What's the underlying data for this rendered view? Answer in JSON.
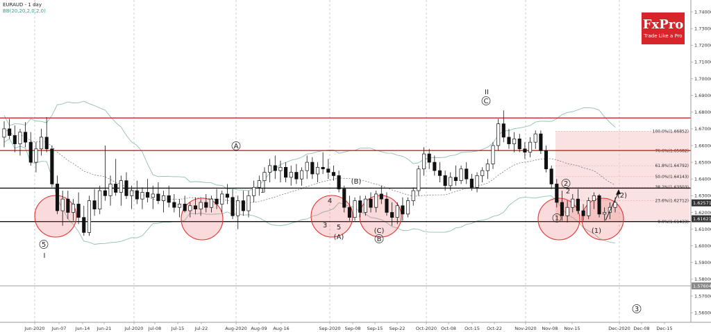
{
  "header": {
    "title": "EURAUD - 1 day",
    "indicator": "BB(20,20,2,0,2,0)"
  },
  "logo": {
    "brand": "FxPro",
    "tagline": "Trade Like a Pro",
    "color": "#d7262b"
  },
  "chart_data": {
    "type": "candlestick",
    "symbol": "EURAUD",
    "timeframe": "1 day",
    "ylim": [
      1.5555,
      1.745
    ],
    "y_ticks": [
      1.74,
      1.73,
      1.72,
      1.71,
      1.7,
      1.69,
      1.68,
      1.67,
      1.66,
      1.65,
      1.64,
      1.63,
      1.62,
      1.61,
      1.6,
      1.59,
      1.58,
      1.57,
      1.56
    ],
    "y_tick_labels": [
      "1.74000",
      "1.73000",
      "1.72000",
      "1.71000",
      "1.70000",
      "1.69000",
      "1.68000",
      "1.67000",
      "1.66000",
      "1.65000",
      "1.64000",
      "1.63000",
      "1.62000",
      "1.61000",
      "1.60000",
      "1.59000",
      "1.58000",
      "1.57000",
      "1.56000"
    ],
    "x_labels": [
      "Jun-2020",
      "Jun-07",
      "Jun-14",
      "Jun-21",
      "Jul-2020",
      "Jul-08",
      "Jul-15",
      "Jul-22",
      "Aug-2020",
      "Aug-09",
      "Aug-16",
      "Sep-2020",
      "Sep-08",
      "Sep-15",
      "Sep-22",
      "Oct-2020",
      "Oct-08",
      "Oct-15",
      "Oct-22",
      "Nov-2020",
      "Nov-08",
      "Nov-15",
      "Dec-2020",
      "Dec-08",
      "Dec-15"
    ],
    "price_badges": [
      {
        "label": "1.62571",
        "value": 1.62571,
        "color": "#333333"
      },
      {
        "label": "1.61621",
        "value": 1.61621,
        "color": "#333333"
      },
      {
        "label": "1.57604",
        "value": 1.57604,
        "color": "#888888"
      }
    ],
    "horizontal_lines": [
      {
        "value": 1.6765,
        "color": "#d42020"
      },
      {
        "value": 1.657,
        "color": "#d42020"
      },
      {
        "value": 1.6345,
        "color": "#111111"
      },
      {
        "value": 1.6145,
        "color": "#111111"
      },
      {
        "value": 1.57604,
        "color": "#888888"
      }
    ],
    "fibonacci": {
      "color": "#f5c6c6",
      "levels": [
        {
          "label": "100.0%(1.66852)",
          "value": 1.66852
        },
        {
          "label": "76.6%(1.65682)",
          "value": 1.65682
        },
        {
          "label": "61.8%(1.64792)",
          "value": 1.64792
        },
        {
          "label": "50.0%(1.64143)",
          "value": 1.64143
        },
        {
          "label": "38.2%(1.63503)",
          "value": 1.63503
        },
        {
          "label": "23.6%(1.62712)",
          "value": 1.62712
        },
        {
          "label": "0.0%(1.61433)",
          "value": 1.61433
        }
      ]
    },
    "wave_labels": [
      "5",
      "I",
      "3",
      "4",
      "5",
      "(A)",
      "(B)",
      "(C)",
      "B",
      "2",
      "A",
      "1",
      "II",
      "C",
      "1",
      "2",
      "(1)",
      "(2)",
      "3"
    ],
    "candles": [
      [
        1.665,
        1.6745,
        1.659,
        1.67
      ],
      [
        1.67,
        1.676,
        1.664,
        1.666
      ],
      [
        1.666,
        1.672,
        1.656,
        1.661
      ],
      [
        1.661,
        1.67,
        1.654,
        1.668
      ],
      [
        1.668,
        1.674,
        1.659,
        1.662
      ],
      [
        1.662,
        1.668,
        1.648,
        1.65
      ],
      [
        1.65,
        1.662,
        1.644,
        1.658
      ],
      [
        1.658,
        1.67,
        1.654,
        1.665
      ],
      [
        1.665,
        1.677,
        1.656,
        1.658
      ],
      [
        1.658,
        1.66,
        1.635,
        1.637
      ],
      [
        1.637,
        1.642,
        1.619,
        1.621
      ],
      [
        1.621,
        1.633,
        1.612,
        1.628
      ],
      [
        1.628,
        1.633,
        1.616,
        1.62
      ],
      [
        1.62,
        1.628,
        1.615,
        1.625
      ],
      [
        1.625,
        1.632,
        1.613,
        1.617
      ],
      [
        1.617,
        1.624,
        1.606,
        1.608
      ],
      [
        1.608,
        1.63,
        1.606,
        1.627
      ],
      [
        1.627,
        1.634,
        1.618,
        1.622
      ],
      [
        1.622,
        1.636,
        1.619,
        1.633
      ],
      [
        1.633,
        1.66,
        1.627,
        1.63
      ],
      [
        1.63,
        1.642,
        1.624,
        1.637
      ],
      [
        1.637,
        1.652,
        1.63,
        1.632
      ],
      [
        1.632,
        1.642,
        1.624,
        1.639
      ],
      [
        1.639,
        1.644,
        1.628,
        1.63
      ],
      [
        1.63,
        1.636,
        1.622,
        1.633
      ],
      [
        1.633,
        1.639,
        1.625,
        1.628
      ],
      [
        1.628,
        1.635,
        1.622,
        1.632
      ],
      [
        1.632,
        1.64,
        1.626,
        1.629
      ],
      [
        1.629,
        1.636,
        1.622,
        1.631
      ],
      [
        1.631,
        1.638,
        1.625,
        1.627
      ],
      [
        1.627,
        1.633,
        1.62,
        1.63
      ],
      [
        1.63,
        1.636,
        1.623,
        1.626
      ],
      [
        1.626,
        1.631,
        1.62,
        1.623
      ],
      [
        1.623,
        1.628,
        1.617,
        1.625
      ],
      [
        1.625,
        1.63,
        1.62,
        1.621
      ],
      [
        1.621,
        1.626,
        1.617,
        1.624
      ],
      [
        1.624,
        1.629,
        1.619,
        1.622
      ],
      [
        1.622,
        1.628,
        1.618,
        1.626
      ],
      [
        1.626,
        1.631,
        1.62,
        1.623
      ],
      [
        1.623,
        1.63,
        1.62,
        1.628
      ],
      [
        1.628,
        1.634,
        1.622,
        1.625
      ],
      [
        1.625,
        1.633,
        1.62,
        1.631
      ],
      [
        1.631,
        1.637,
        1.625,
        1.629
      ],
      [
        1.629,
        1.634,
        1.616,
        1.618
      ],
      [
        1.618,
        1.63,
        1.61,
        1.627
      ],
      [
        1.627,
        1.633,
        1.618,
        1.621
      ],
      [
        1.621,
        1.633,
        1.617,
        1.63
      ],
      [
        1.63,
        1.639,
        1.626,
        1.635
      ],
      [
        1.635,
        1.642,
        1.63,
        1.639
      ],
      [
        1.639,
        1.647,
        1.632,
        1.644
      ],
      [
        1.644,
        1.652,
        1.638,
        1.648
      ],
      [
        1.648,
        1.654,
        1.64,
        1.645
      ],
      [
        1.645,
        1.651,
        1.638,
        1.647
      ],
      [
        1.647,
        1.65,
        1.638,
        1.641
      ],
      [
        1.641,
        1.648,
        1.636,
        1.644
      ],
      [
        1.644,
        1.649,
        1.637,
        1.64
      ],
      [
        1.64,
        1.647,
        1.636,
        1.645
      ],
      [
        1.645,
        1.654,
        1.64,
        1.65
      ],
      [
        1.65,
        1.653,
        1.64,
        1.643
      ],
      [
        1.643,
        1.65,
        1.638,
        1.647
      ],
      [
        1.647,
        1.656,
        1.643,
        1.646
      ],
      [
        1.646,
        1.652,
        1.64,
        1.644
      ],
      [
        1.644,
        1.648,
        1.639,
        1.642
      ],
      [
        1.642,
        1.645,
        1.632,
        1.634
      ],
      [
        1.634,
        1.636,
        1.62,
        1.623
      ],
      [
        1.623,
        1.63,
        1.615,
        1.617
      ],
      [
        1.617,
        1.629,
        1.615,
        1.627
      ],
      [
        1.627,
        1.63,
        1.617,
        1.62
      ],
      [
        1.62,
        1.63,
        1.618,
        1.628
      ],
      [
        1.628,
        1.632,
        1.62,
        1.623
      ],
      [
        1.623,
        1.633,
        1.62,
        1.631
      ],
      [
        1.631,
        1.636,
        1.625,
        1.628
      ],
      [
        1.628,
        1.632,
        1.618,
        1.62
      ],
      [
        1.62,
        1.626,
        1.612,
        1.617
      ],
      [
        1.617,
        1.626,
        1.613,
        1.624
      ],
      [
        1.624,
        1.629,
        1.615,
        1.619
      ],
      [
        1.619,
        1.629,
        1.617,
        1.627
      ],
      [
        1.627,
        1.635,
        1.624,
        1.633
      ],
      [
        1.633,
        1.648,
        1.63,
        1.646
      ],
      [
        1.646,
        1.659,
        1.642,
        1.655
      ],
      [
        1.655,
        1.658,
        1.646,
        1.65
      ],
      [
        1.65,
        1.654,
        1.642,
        1.645
      ],
      [
        1.645,
        1.65,
        1.638,
        1.642
      ],
      [
        1.642,
        1.645,
        1.633,
        1.636
      ],
      [
        1.636,
        1.644,
        1.633,
        1.641
      ],
      [
        1.641,
        1.648,
        1.636,
        1.639
      ],
      [
        1.639,
        1.648,
        1.637,
        1.646
      ],
      [
        1.646,
        1.65,
        1.637,
        1.64
      ],
      [
        1.64,
        1.643,
        1.633,
        1.635
      ],
      [
        1.635,
        1.644,
        1.632,
        1.642
      ],
      [
        1.642,
        1.647,
        1.638,
        1.645
      ],
      [
        1.645,
        1.652,
        1.64,
        1.649
      ],
      [
        1.649,
        1.662,
        1.646,
        1.66
      ],
      [
        1.66,
        1.676,
        1.657,
        1.673
      ],
      [
        1.673,
        1.681,
        1.662,
        1.665
      ],
      [
        1.665,
        1.67,
        1.658,
        1.661
      ],
      [
        1.661,
        1.668,
        1.656,
        1.664
      ],
      [
        1.664,
        1.667,
        1.656,
        1.658
      ],
      [
        1.658,
        1.662,
        1.652,
        1.656
      ],
      [
        1.656,
        1.665,
        1.653,
        1.662
      ],
      [
        1.662,
        1.669,
        1.658,
        1.667
      ],
      [
        1.667,
        1.669,
        1.655,
        1.657
      ],
      [
        1.657,
        1.66,
        1.644,
        1.646
      ],
      [
        1.646,
        1.648,
        1.634,
        1.637
      ],
      [
        1.637,
        1.64,
        1.623,
        1.626
      ],
      [
        1.626,
        1.633,
        1.615,
        1.618
      ],
      [
        1.618,
        1.627,
        1.614,
        1.623
      ],
      [
        1.623,
        1.631,
        1.62,
        1.628
      ],
      [
        1.628,
        1.634,
        1.619,
        1.621
      ],
      [
        1.621,
        1.625,
        1.615,
        1.618
      ],
      [
        1.618,
        1.629,
        1.616,
        1.627
      ],
      [
        1.627,
        1.632,
        1.622,
        1.63
      ],
      [
        1.63,
        1.631,
        1.617,
        1.619
      ],
      [
        1.619,
        1.623,
        1.615,
        1.62
      ],
      [
        1.62,
        1.626,
        1.616,
        1.623
      ],
      [
        1.623,
        1.629,
        1.62,
        1.626
      ]
    ]
  }
}
